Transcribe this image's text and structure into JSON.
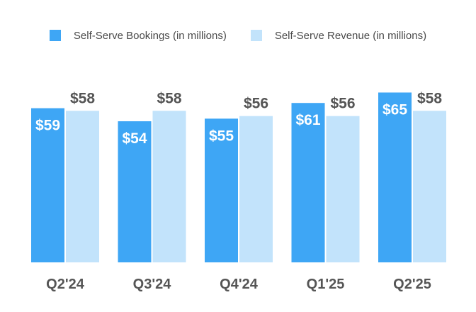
{
  "chart_data": {
    "type": "bar",
    "categories": [
      "Q2'24",
      "Q3'24",
      "Q4'24",
      "Q1'25",
      "Q2'25"
    ],
    "series": [
      {
        "name": "Self-Serve Bookings (in millions)",
        "values": [
          59,
          54,
          55,
          61,
          65
        ],
        "labels": [
          "$59",
          "$54",
          "$55",
          "$61",
          "$65"
        ],
        "color": "#3ea6f5"
      },
      {
        "name": "Self-Serve Revenue (in millions)",
        "values": [
          58,
          58,
          56,
          56,
          58
        ],
        "labels": [
          "$58",
          "$58",
          "$56",
          "$56",
          "$58"
        ],
        "color": "#c2e3fb"
      }
    ],
    "ylim": [
      0,
      65
    ],
    "legend_position": "top-center",
    "grid": false,
    "label_colors": {
      "inside": "#ffffff",
      "outside": "#555555"
    }
  }
}
